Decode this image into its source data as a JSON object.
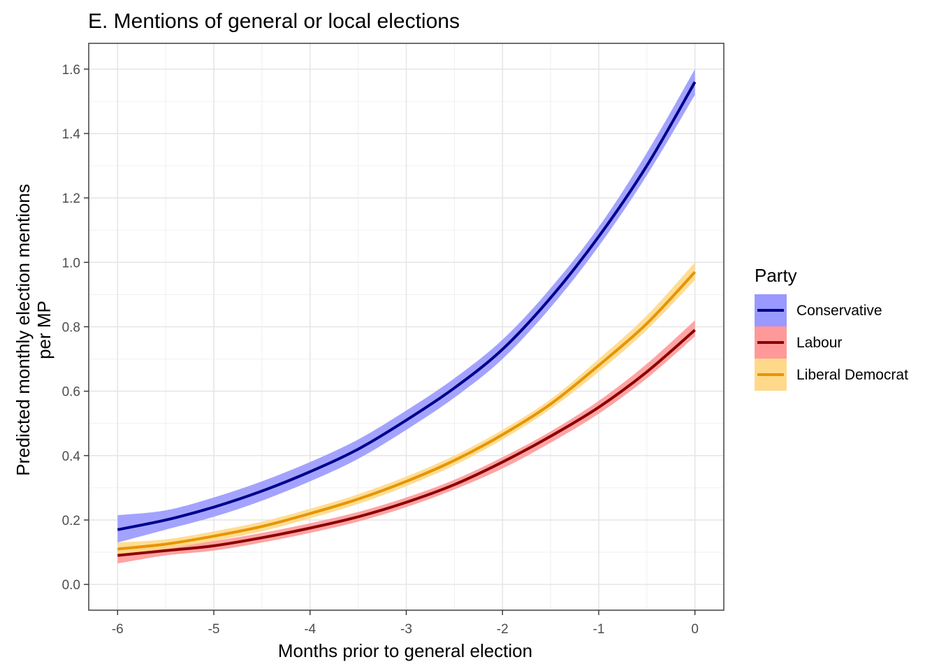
{
  "chart_data": {
    "type": "line",
    "title": "E. Mentions of general or local elections",
    "xlabel": "Months prior to general election",
    "ylabel": [
      "Predicted monthly election mentions",
      "per MP"
    ],
    "xlim": [
      -6.3,
      0.3
    ],
    "ylim": [
      -0.08,
      1.68
    ],
    "x_ticks": [
      -6,
      -5,
      -4,
      -3,
      -2,
      -1,
      0
    ],
    "x_tick_labels": [
      "-6",
      "-5",
      "-4",
      "-3",
      "-2",
      "-1",
      "0"
    ],
    "y_ticks": [
      0.0,
      0.2,
      0.4,
      0.6,
      0.8,
      1.0,
      1.2,
      1.4,
      1.6
    ],
    "y_tick_labels": [
      "0.0",
      "0.2",
      "0.4",
      "0.6",
      "0.8",
      "1.0",
      "1.2",
      "1.4",
      "1.6"
    ],
    "grid": true,
    "legend": {
      "title": "Party",
      "position": "right"
    },
    "x": [
      -6,
      -5.5,
      -5,
      -4.5,
      -4,
      -3.5,
      -3,
      -2.5,
      -2,
      -1.5,
      -1,
      -0.5,
      0
    ],
    "series": [
      {
        "name": "Conservative",
        "line_color": "#00008b",
        "band_color": "#9999ff",
        "values": [
          0.17,
          0.2,
          0.24,
          0.29,
          0.35,
          0.42,
          0.51,
          0.61,
          0.73,
          0.89,
          1.08,
          1.3,
          1.56
        ],
        "lower": [
          0.13,
          0.17,
          0.21,
          0.26,
          0.32,
          0.39,
          0.48,
          0.58,
          0.7,
          0.86,
          1.05,
          1.27,
          1.52
        ],
        "upper": [
          0.215,
          0.23,
          0.27,
          0.32,
          0.38,
          0.45,
          0.54,
          0.64,
          0.76,
          0.92,
          1.11,
          1.34,
          1.6
        ]
      },
      {
        "name": "Labour",
        "line_color": "#8b0000",
        "band_color": "#ff9999",
        "values": [
          0.09,
          0.105,
          0.12,
          0.145,
          0.175,
          0.21,
          0.255,
          0.31,
          0.38,
          0.46,
          0.55,
          0.66,
          0.79
        ],
        "lower": [
          0.065,
          0.09,
          0.105,
          0.13,
          0.16,
          0.195,
          0.24,
          0.295,
          0.36,
          0.44,
          0.53,
          0.64,
          0.77
        ],
        "upper": [
          0.11,
          0.12,
          0.135,
          0.16,
          0.19,
          0.225,
          0.27,
          0.325,
          0.395,
          0.475,
          0.57,
          0.685,
          0.82
        ]
      },
      {
        "name": "Liberal Democrat",
        "line_color": "#e69500",
        "band_color": "#ffd98a",
        "values": [
          0.11,
          0.125,
          0.15,
          0.18,
          0.22,
          0.265,
          0.32,
          0.385,
          0.465,
          0.56,
          0.68,
          0.81,
          0.97
        ],
        "lower": [
          0.09,
          0.11,
          0.135,
          0.165,
          0.205,
          0.25,
          0.305,
          0.37,
          0.45,
          0.545,
          0.66,
          0.79,
          0.945
        ],
        "upper": [
          0.13,
          0.14,
          0.165,
          0.195,
          0.235,
          0.28,
          0.335,
          0.4,
          0.48,
          0.575,
          0.7,
          0.835,
          1.0
        ]
      }
    ]
  }
}
